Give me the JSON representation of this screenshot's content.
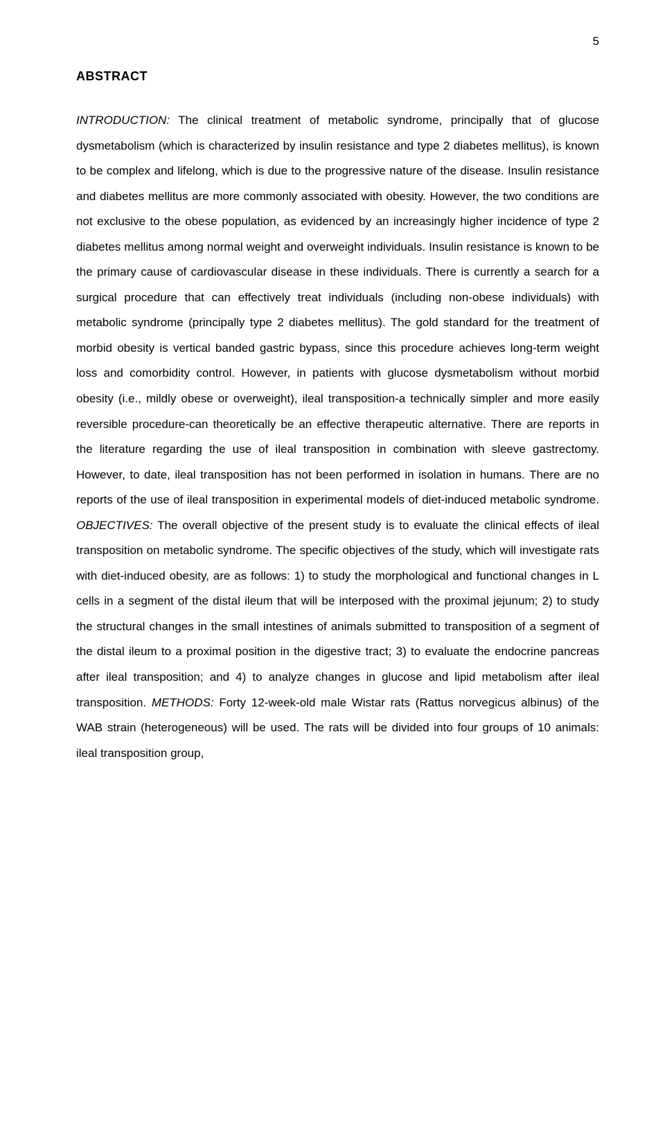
{
  "page": {
    "number": "5"
  },
  "abstract": {
    "heading": "ABSTRACT",
    "sections": {
      "introduction_label": "INTRODUCTION:",
      "introduction_text": " The clinical treatment of metabolic syndrome, principally that of glucose dysmetabolism (which is characterized by insulin resistance and type 2 diabetes mellitus), is known to be complex and lifelong, which is due to the progressive nature of the disease. Insulin resistance and diabetes mellitus are more commonly associated with obesity. However, the two conditions are not exclusive to the obese population, as evidenced by an increasingly higher incidence of type 2 diabetes mellitus among normal weight and overweight individuals. Insulin resistance is known to be the primary cause of cardiovascular disease in these individuals. There is currently a search for a surgical procedure that can effectively treat individuals (including non-obese individuals) with metabolic syndrome (principally type 2 diabetes mellitus). The gold standard for the treatment of morbid obesity is vertical banded gastric bypass, since this procedure achieves long-term weight loss and comorbidity control. However, in patients with glucose dysmetabolism without morbid obesity (i.e., mildly obese or overweight), ileal transposition-a technically simpler and more easily reversible procedure-can theoretically be an effective therapeutic alternative. There are reports in the literature regarding the use of ileal transposition in combination with sleeve gastrectomy. However, to date, ileal transposition has not been performed in isolation in humans. There are no reports of the use of ileal transposition in experimental models of diet-induced metabolic syndrome. ",
      "objectives_label": "OBJECTIVES:",
      "objectives_text": " The overall objective of the present study is to evaluate the clinical effects of ileal transposition on metabolic syndrome. The specific objectives of the study, which will investigate rats with diet-induced obesity, are as follows: 1) to study the morphological and functional changes in L cells in a segment of the distal ileum that will be interposed with the proximal jejunum; 2) to study the structural changes in the small intestines of animals submitted to transposition of a segment of the distal ileum to a proximal position in the digestive tract; 3) to evaluate the endocrine pancreas after ileal transposition; and 4) to analyze changes in glucose and lipid metabolism after ileal transposition. ",
      "methods_label": "METHODS:",
      "methods_text": " Forty 12-week-old male Wistar rats (Rattus norvegicus albinus) of the WAB strain (heterogeneous) will be used. The rats will be divided into four groups of 10 animals: ileal transposition group,"
    }
  }
}
